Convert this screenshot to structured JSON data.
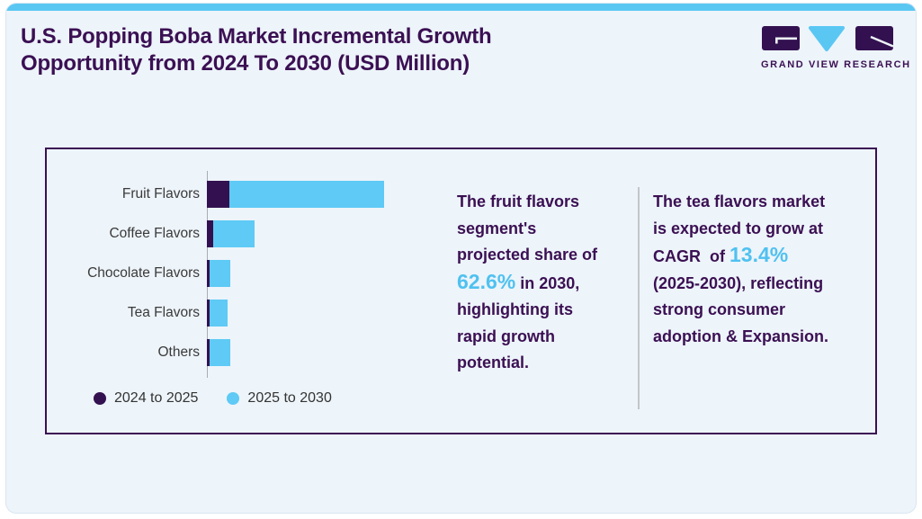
{
  "page": {
    "title_lines": [
      "U.S. Popping Boba Market Incremental Growth",
      "Opportunity from 2024 To 2030 (USD Million)"
    ]
  },
  "logo": {
    "wordmark": "GRAND VIEW RESEARCH"
  },
  "colors": {
    "accent_blue": "#5ac7f3",
    "accent_purple": "#331150",
    "title_purple": "#3b1053",
    "highlight_blue": "#4fc1f0",
    "card_background": "#edf4fa"
  },
  "chart_data": {
    "type": "bar",
    "orientation": "horizontal",
    "stacked": true,
    "title": "U.S. Popping Boba Market Incremental Growth Opportunity from 2024 To 2030 (USD Million)",
    "categories": [
      "Fruit Flavors",
      "Coffee Flavors",
      "Chocolate Flavors",
      "Tea Flavors",
      "Others"
    ],
    "series": [
      {
        "name": "2024 to 2025",
        "color": "#331150",
        "values": [
          25,
          7,
          3,
          3,
          3
        ]
      },
      {
        "name": "2025 to 2030",
        "color": "#5ecaf5",
        "values": [
          172,
          46,
          23,
          20,
          23
        ]
      }
    ],
    "value_units": "relative length (no numeric axis labels shown)",
    "xlabel": "",
    "ylabel": "",
    "grid": false,
    "legend_position": "bottom"
  },
  "insights": [
    {
      "parts": [
        {
          "style": "normal",
          "text": "The fruit flavors\nsegment's\nprojected share of\n"
        },
        {
          "style": "highlight",
          "text": "62.6%"
        },
        {
          "style": "normal",
          "text": " in 2030,\nhighlighting its\nrapid growth\npotential."
        }
      ]
    },
    {
      "parts": [
        {
          "style": "normal",
          "text": "The tea flavors market\nis expected to grow at\nCAGR  of "
        },
        {
          "style": "highlight",
          "text": "13.4%"
        },
        {
          "style": "normal",
          "text": "\n(2025-2030), reflecting\nstrong consumer\nadoption & Expansion."
        }
      ]
    }
  ]
}
